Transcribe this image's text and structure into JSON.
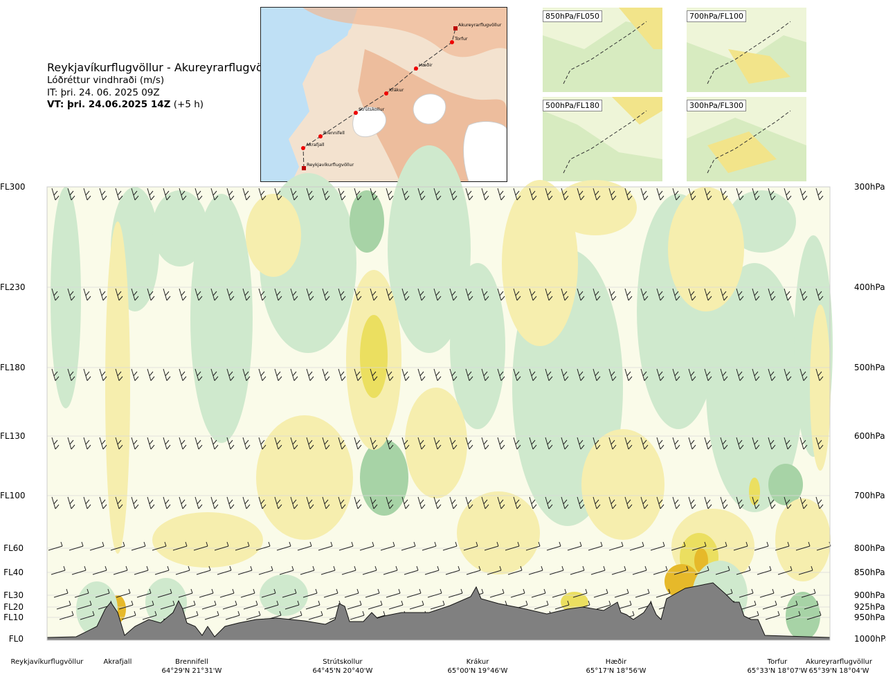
{
  "header": {
    "title": "Reykjavíkurflugvöllur - Akureyrarflugvöllur",
    "subtitle": "Lóðréttur vindhraði (m/s)",
    "issue_time": "IT: þri. 24. 06. 2025 09Z",
    "valid_prefix": "VT: þri. 24.06.2025 14Z",
    "valid_suffix": " (+5 h)"
  },
  "route_map": {
    "points": [
      {
        "name": "Akureyrarflugvöllur"
      },
      {
        "name": "Torfur"
      },
      {
        "name": "Hæðir"
      },
      {
        "name": "Krákur"
      },
      {
        "name": "Strútskollur"
      },
      {
        "name": "Brennifell"
      },
      {
        "name": "Akrafjall"
      },
      {
        "name": "Reykjavíkurflugvöllur"
      }
    ]
  },
  "thumbnails": [
    {
      "label": "850hPa/FL050"
    },
    {
      "label": "700hPa/FL100"
    },
    {
      "label": "500hPa/FL180"
    },
    {
      "label": "300hPa/FL300"
    }
  ],
  "chart_data": {
    "type": "heatmap",
    "title": "Lóðréttur vindhraði (m/s)",
    "levels": [
      {
        "fl": "FL300",
        "hpa": "300hPa"
      },
      {
        "fl": "FL230",
        "hpa": "400hPa"
      },
      {
        "fl": "FL180",
        "hpa": "500hPa"
      },
      {
        "fl": "FL130",
        "hpa": "600hPa"
      },
      {
        "fl": "FL100",
        "hpa": "700hPa"
      },
      {
        "fl": "FL60",
        "hpa": "800hPa"
      },
      {
        "fl": "FL40",
        "hpa": "850hPa"
      },
      {
        "fl": "FL30",
        "hpa": "900hPa"
      },
      {
        "fl": "FL20",
        "hpa": "925hPa"
      },
      {
        "fl": "FL10",
        "hpa": "950hPa"
      },
      {
        "fl": "FL0",
        "hpa": "1000hPa"
      }
    ],
    "locations": [
      {
        "name": "Reykjavíkurflugvöllur",
        "coord": ""
      },
      {
        "name": "Akrafjall",
        "coord": ""
      },
      {
        "name": "Brennifell",
        "coord": "64°29'N 21°31'W"
      },
      {
        "name": "Strútskollur",
        "coord": "64°45'N 20°40'W"
      },
      {
        "name": "Krákur",
        "coord": "65°00'N 19°46'W"
      },
      {
        "name": "Hæðir",
        "coord": "65°17'N 18°56'W"
      },
      {
        "name": "Torfur",
        "coord": "65°33'N 18°07'W"
      },
      {
        "name": "Akureyrarflugvöllur",
        "coord": "65°39'N 18°04'W"
      }
    ],
    "colors": {
      "strong_down": "#a7d3a6",
      "down": "#cfe9cd",
      "weak_down": "#e8f4e3",
      "neutral": "#fafbe9",
      "weak_up": "#f6eeae",
      "up": "#ebdf60",
      "strong_up": "#e6b92a",
      "terrain": "#7f7f7f"
    }
  }
}
